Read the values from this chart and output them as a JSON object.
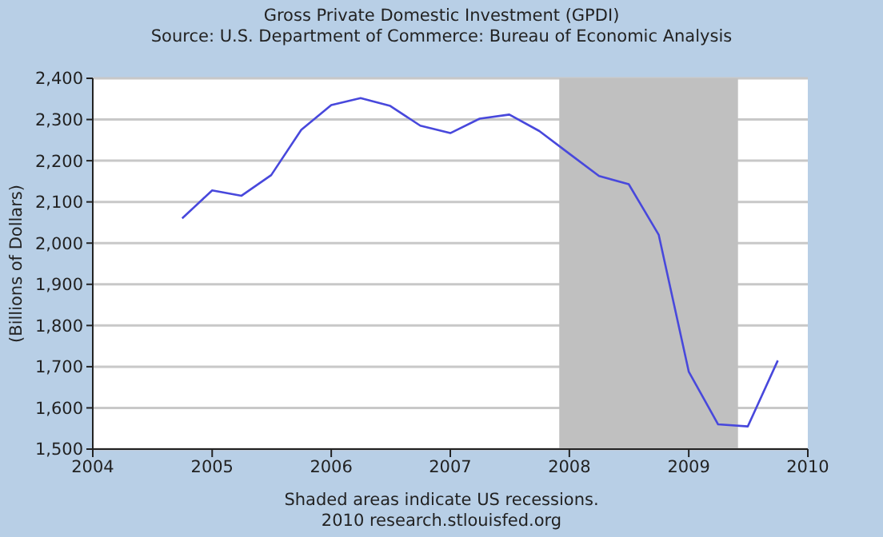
{
  "chart_data": {
    "type": "line",
    "title": "Gross Private Domestic Investment (GPDI)",
    "subtitle": "Source: U.S. Department of Commerce: Bureau of Economic Analysis",
    "ylabel": "(Billions of Dollars)",
    "x": [
      "2004-10",
      "2005-01",
      "2005-04",
      "2005-07",
      "2005-10",
      "2006-01",
      "2006-04",
      "2006-07",
      "2006-10",
      "2007-01",
      "2007-04",
      "2007-07",
      "2007-10",
      "2008-01",
      "2008-04",
      "2008-07",
      "2008-10",
      "2009-01",
      "2009-04",
      "2009-07",
      "2009-10"
    ],
    "series": [
      {
        "color": "#4848dc",
        "values": [
          2060,
          2128,
          2115,
          2165,
          2275,
          2335,
          2352,
          2333,
          2285,
          2267,
          2302,
          2312,
          2272,
          2217,
          2163,
          2143,
          2020,
          1688,
          1560,
          1555,
          1715
        ]
      }
    ],
    "xlim": [
      "2004",
      "2010"
    ],
    "xticks": [
      "2004",
      "2005",
      "2006",
      "2007",
      "2008",
      "2009",
      "2010"
    ],
    "ylim": [
      1500,
      2400
    ],
    "yticks": [
      {
        "value": 1500,
        "label": "1,500"
      },
      {
        "value": 1600,
        "label": "1,600"
      },
      {
        "value": 1700,
        "label": "1,700"
      },
      {
        "value": 1800,
        "label": "1,800"
      },
      {
        "value": 1900,
        "label": "1,900"
      },
      {
        "value": 2000,
        "label": "2,000"
      },
      {
        "value": 2100,
        "label": "2,100"
      },
      {
        "value": 2200,
        "label": "2,200"
      },
      {
        "value": 2300,
        "label": "2,300"
      },
      {
        "value": 2400,
        "label": "2,400"
      }
    ],
    "bands": [
      {
        "axis": "x",
        "from": "2007-12",
        "to": "2009-06",
        "color": "#c0c0c0"
      }
    ],
    "grid": "y",
    "legend": false,
    "marker": "none",
    "line_style": "solid",
    "annotations": [
      "Shaded areas indicate US recessions.",
      "2010 research.stlouisfed.org"
    ]
  }
}
